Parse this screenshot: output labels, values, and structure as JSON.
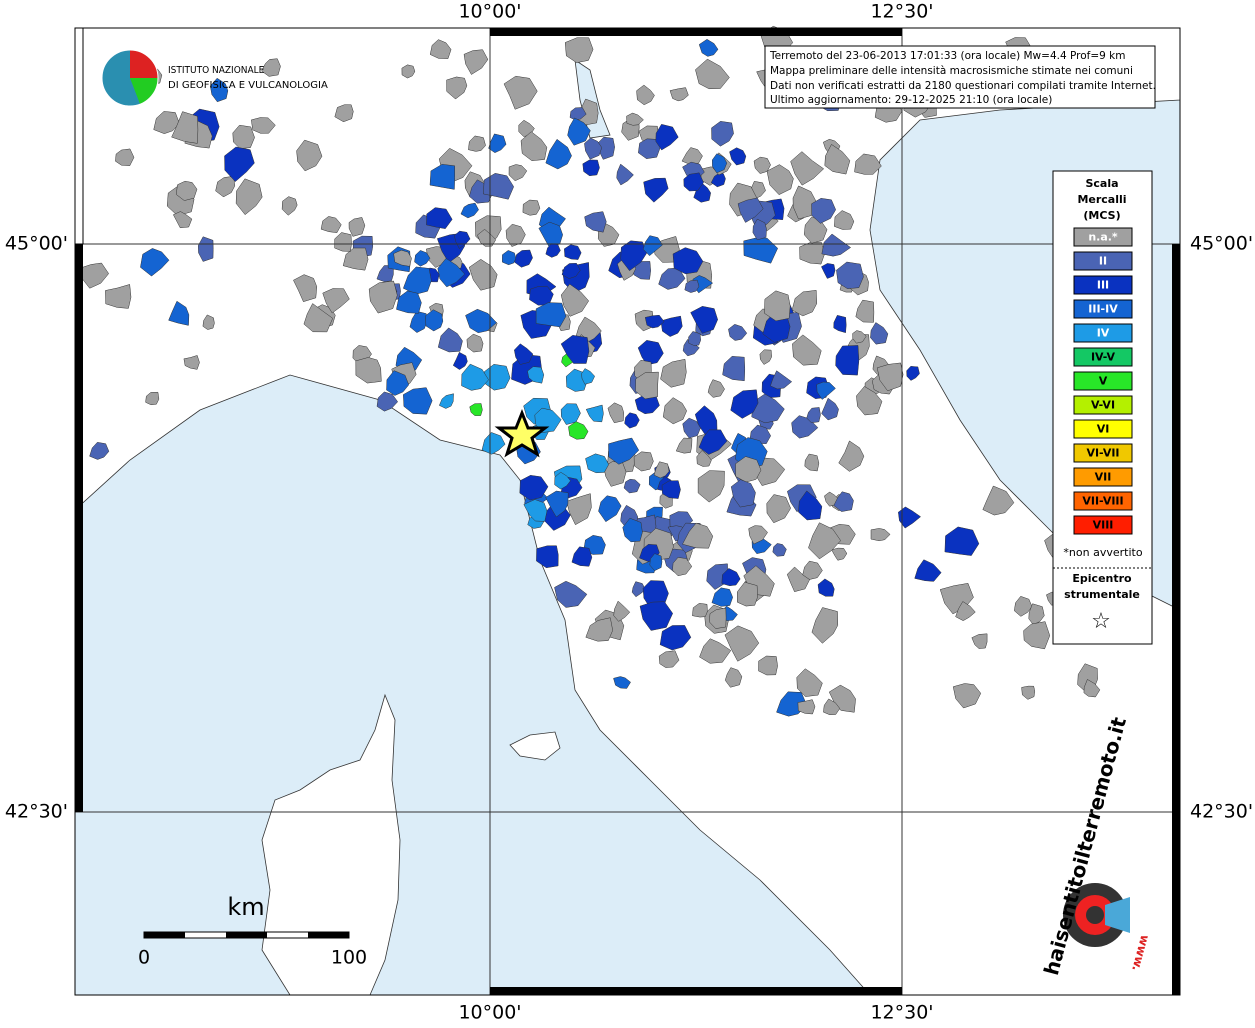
{
  "map": {
    "graticule": {
      "top": [
        "10°00'",
        "12°30'"
      ],
      "bottom": [
        "10°00'",
        "12°30'"
      ],
      "left": [
        "45°00'",
        "42°30'"
      ],
      "right": [
        "45°00'",
        "42°30'"
      ]
    },
    "logo": {
      "line1": "ISTITUTO NAZIONALE",
      "line2": "DI GEOFISICA E VULCANOLOGIA"
    },
    "info": [
      "Terremoto del 23-06-2013 17:01:33 (ora locale) Mw=4.4 Prof=9 km",
      "Mappa preliminare delle intensità macrosismiche stimate nei comuni",
      "Dati non verificati estratti da 2180 questionari compilati tramite Internet.",
      "Ultimo aggiornamento: 29-12-2025 21:10 (ora locale)"
    ],
    "legend": {
      "title": [
        "Scala",
        "Mercalli",
        "(MCS)"
      ],
      "classes": [
        {
          "label": "n.a.*",
          "color": "#a0a0a0"
        },
        {
          "label": "II",
          "color": "#4a64b4"
        },
        {
          "label": "III",
          "color": "#0a32c0"
        },
        {
          "label": "III-IV",
          "color": "#1464d2"
        },
        {
          "label": "IV",
          "color": "#1e9be6"
        },
        {
          "label": "IV-V",
          "color": "#14c864"
        },
        {
          "label": "V",
          "color": "#28e628"
        },
        {
          "label": "V-VI",
          "color": "#b4f000"
        },
        {
          "label": "VI",
          "color": "#ffff00"
        },
        {
          "label": "VI-VII",
          "color": "#f0c800"
        },
        {
          "label": "VII",
          "color": "#ff9b00"
        },
        {
          "label": "VII-VIII",
          "color": "#ff6400"
        },
        {
          "label": "VIII",
          "color": "#ff1e00"
        }
      ],
      "note": "*non avvertito",
      "epicentre": [
        "Epicentro",
        "strumentale"
      ],
      "star": "☆"
    },
    "scale": {
      "unit": "km",
      "min": "0",
      "max": "100"
    },
    "badge": {
      "site": "haisentitoilterremoto.it",
      "www": "www."
    }
  }
}
